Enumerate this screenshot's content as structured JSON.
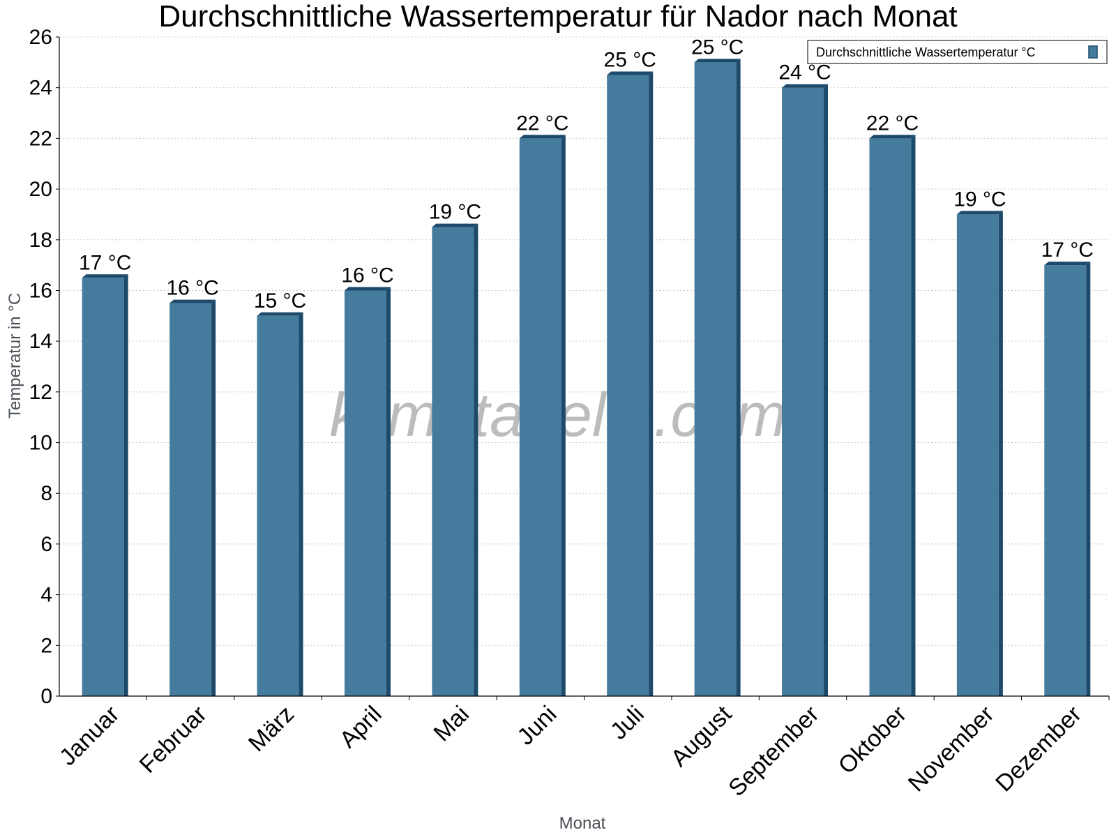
{
  "chart_data": {
    "type": "bar",
    "title": "Durchschnittliche Wassertemperatur für Nador nach Monat",
    "xlabel": "Monat",
    "ylabel": "Temperatur in °C",
    "ylim": [
      0,
      26
    ],
    "yticks": [
      0,
      2,
      4,
      6,
      8,
      10,
      12,
      14,
      16,
      18,
      20,
      22,
      24,
      26
    ],
    "grid": true,
    "legend_position": "top-right",
    "categories": [
      "Januar",
      "Februar",
      "März",
      "April",
      "Mai",
      "Juni",
      "Juli",
      "August",
      "September",
      "Oktober",
      "November",
      "Dezember"
    ],
    "series": [
      {
        "name": "Durchschnittliche Wassertemperatur °C",
        "color": "#457b9d",
        "values": [
          16.5,
          15.5,
          15,
          16,
          18.5,
          22,
          24.5,
          25,
          24,
          22,
          19,
          17
        ],
        "data_labels": [
          "17 °C",
          "16 °C",
          "15 °C",
          "16 °C",
          "19 °C",
          "22 °C",
          "25 °C",
          "25 °C",
          "24 °C",
          "22 °C",
          "19 °C",
          "17 °C"
        ]
      }
    ]
  },
  "watermark": "klimatabelle.com"
}
